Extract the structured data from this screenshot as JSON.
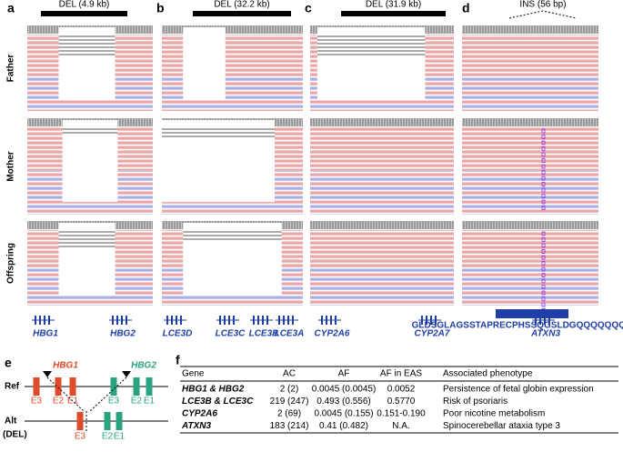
{
  "panels": [
    {
      "letter": "a",
      "event": "DEL (4.9 kb)",
      "genes": [
        "HBG1",
        "HBG2"
      ]
    },
    {
      "letter": "b",
      "event": "DEL (32.2 kb)",
      "genes": [
        "LCE3D",
        "LCE3C",
        "LCE3B",
        "LCE3A"
      ]
    },
    {
      "letter": "c",
      "event": "DEL (31.9 kb)",
      "genes": [
        "CYP2A6",
        "CYP2A7"
      ]
    },
    {
      "letter": "d",
      "event": "INS (56 bp)",
      "genes": [
        "ATXN3"
      ],
      "sequence": "GLDSGLAGSSTAPRECPHSSQGSLDGQQQQQQQQQQKQQK"
    }
  ],
  "rows": [
    "Father",
    "Mother",
    "Offspring"
  ],
  "panel_e": {
    "letter": "e",
    "ref": "Ref",
    "alt": "Alt",
    "alt_sub": "(DEL)",
    "gene1": "HBG1",
    "gene2": "HBG2",
    "exons": [
      "E3",
      "E2",
      "E1"
    ]
  },
  "table": {
    "letter": "f",
    "header": [
      "Gene",
      "AC",
      "AF",
      "AF in EAS",
      "Associated phenotype"
    ],
    "rows": [
      [
        "HBG1 & HBG2",
        "2 (2)",
        "0.0045 (0.0045)",
        "0.0052",
        "Persistence of fetal globin expression"
      ],
      [
        "LCE3B & LCE3C",
        "219 (247)",
        "0.493 (0.556)",
        "0.5770",
        "Risk of psoriaris"
      ],
      [
        "CYP2A6",
        "2 (69)",
        "0.0045 (0.155)",
        "0.151-0.190",
        "Poor nicotine metabolism"
      ],
      [
        "ATXN3",
        "183 (214)",
        "0.41 (0.482)",
        "N.A.",
        "Spinocerebellar ataxia type 3"
      ]
    ]
  }
}
